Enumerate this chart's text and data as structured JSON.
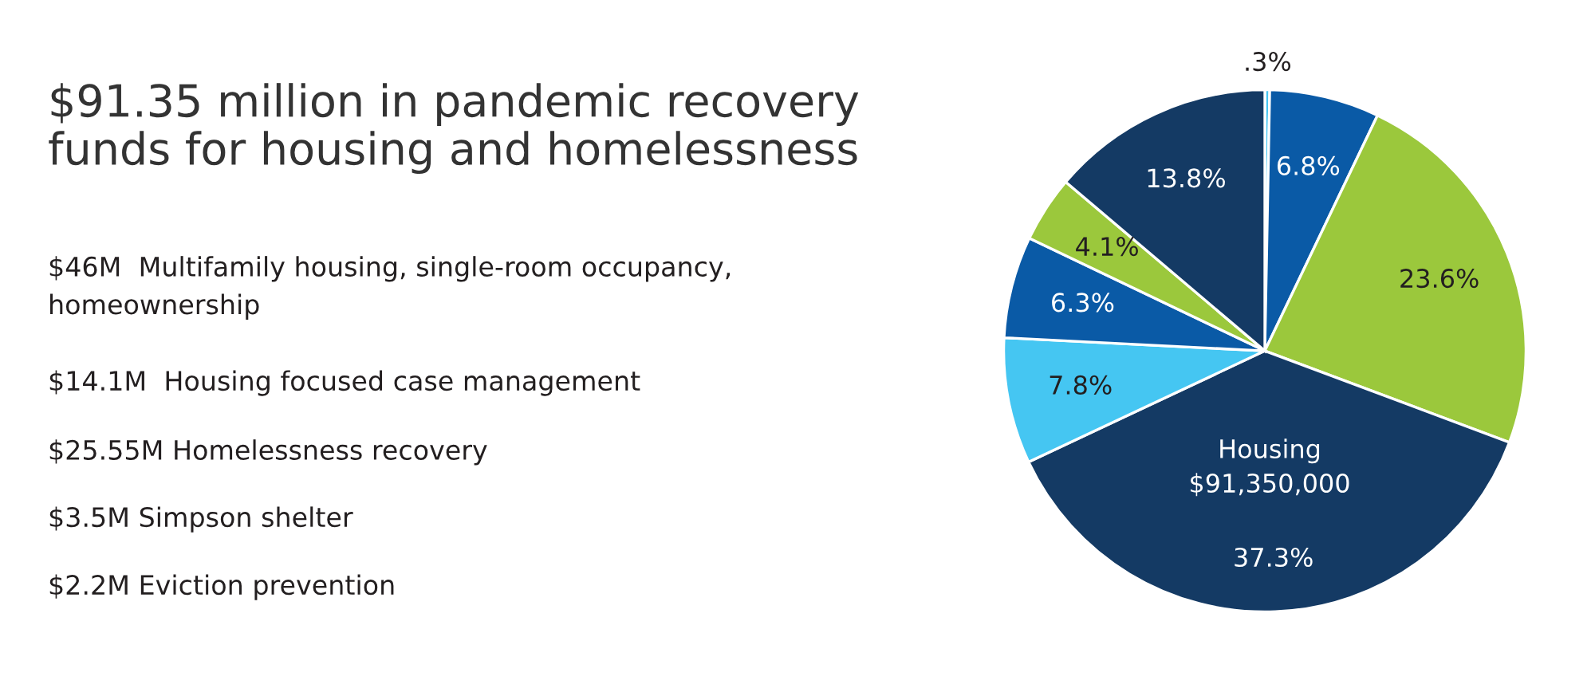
{
  "chart_data": {
    "type": "pie",
    "title": "$91.35 million in pandemic recovery\nfunds for housing and homelessness",
    "categories": [
      null,
      null,
      null,
      null,
      null,
      null,
      null,
      null
    ],
    "values": [
      0.3,
      6.8,
      23.6,
      37.3,
      7.8,
      6.3,
      4.1,
      13.8
    ],
    "colors": [
      "#45c6f2",
      "#0a5aa6",
      "#9bc83c",
      "#143a64",
      "#45c6f2",
      "#0a5aa6",
      "#9bc83c",
      "#143a64"
    ],
    "value_labels": [
      ".3%",
      "6.8%",
      "23.6%",
      "37.3%",
      "7.8%",
      "6.3%",
      "4.1%",
      "13.8%"
    ],
    "annotations": [
      "$46M  Multifamily housing, single-room occupancy,\nhomeownership",
      "$14.1M  Housing focused case management",
      "$25.55M Homelessness recovery",
      "$3.5M Simpson shelter",
      "$2.2M Eviction prevention",
      "Housing\n$91,350,000"
    ]
  }
}
